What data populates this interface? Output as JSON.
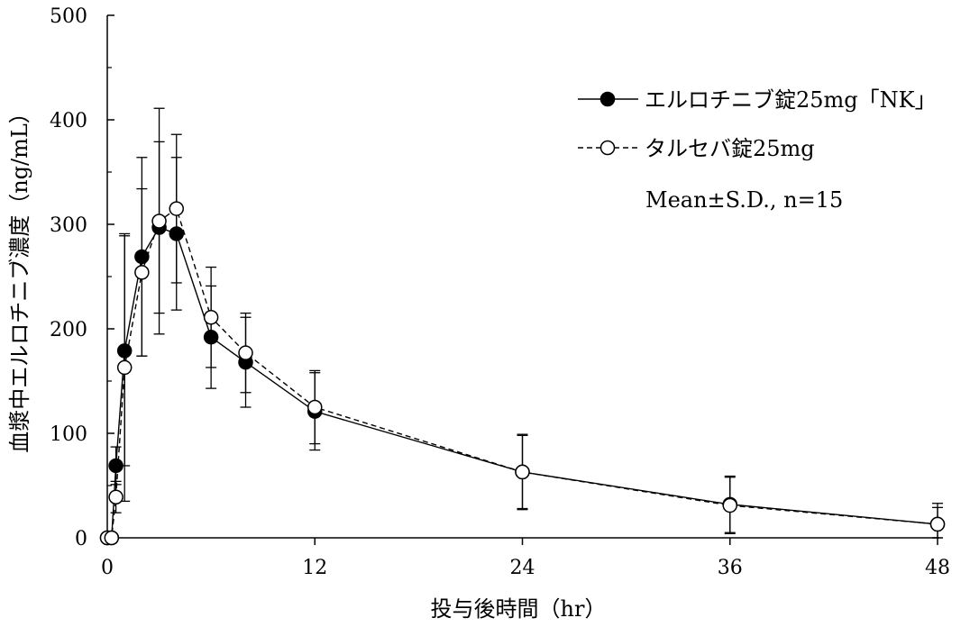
{
  "chart_data": {
    "type": "line",
    "xlabel": "投与後時間（hr）",
    "ylabel": "血漿中エルロチニブ濃度（ng/mL）",
    "xlim": [
      0,
      48
    ],
    "ylim": [
      0,
      500
    ],
    "x_ticks": [
      "0",
      "12",
      "24",
      "36",
      "48"
    ],
    "y_ticks": [
      "0",
      "100",
      "200",
      "300",
      "400",
      "500"
    ],
    "grid": false,
    "legend_position": "top-right",
    "note": "Mean±S.D., n=15",
    "series": [
      {
        "name": "エルロチニブ錠25mg「NK」",
        "marker": "filled-circle",
        "line_style": "solid",
        "x": [
          0,
          0.25,
          0.5,
          1,
          2,
          3,
          4,
          6,
          8,
          12,
          24,
          36,
          48
        ],
        "y": [
          0,
          0,
          69,
          179,
          269,
          297,
          291,
          192,
          168,
          121,
          63,
          32,
          13
        ],
        "err": [
          0,
          0,
          18,
          110,
          95,
          82,
          73,
          49,
          43,
          37,
          36,
          27,
          20
        ]
      },
      {
        "name": "タルセバ錠25mg",
        "marker": "open-circle",
        "line_style": "dashed",
        "x": [
          0,
          0.25,
          0.5,
          1,
          2,
          3,
          4,
          6,
          8,
          12,
          24,
          36,
          48
        ],
        "y": [
          0,
          0,
          39,
          163,
          254,
          303,
          315,
          211,
          177,
          125,
          63,
          31,
          13
        ],
        "err": [
          0,
          0,
          15,
          128,
          80,
          108,
          71,
          48,
          38,
          35,
          35,
          27,
          16
        ]
      }
    ]
  }
}
